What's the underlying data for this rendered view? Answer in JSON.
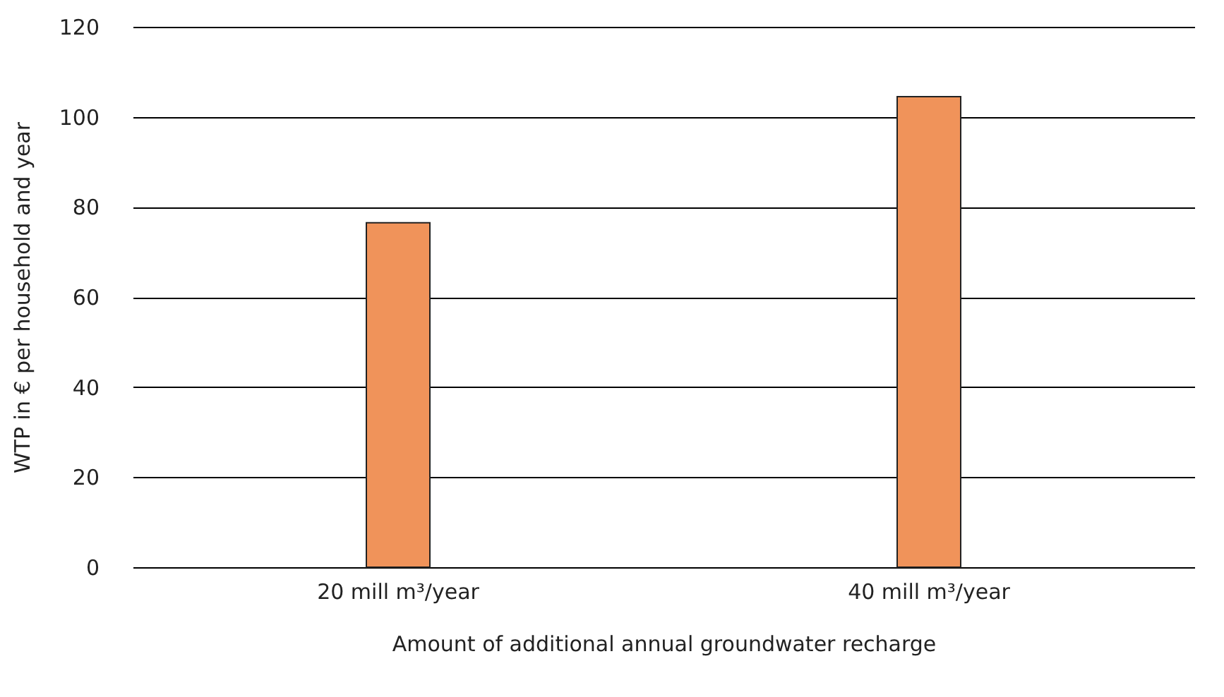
{
  "chart_data": {
    "type": "bar",
    "xlabel": "Amount of additional annual groundwater recharge",
    "ylabel": "WTP in € per household and year",
    "categories": [
      "20 mill m³/year",
      "40 mill m³/year"
    ],
    "values": [
      76.5,
      104.5
    ],
    "color": "#f0935a",
    "ylim": [
      0,
      120
    ],
    "yticks": [
      0,
      20,
      40,
      60,
      80,
      100,
      120
    ],
    "grid": "y"
  }
}
